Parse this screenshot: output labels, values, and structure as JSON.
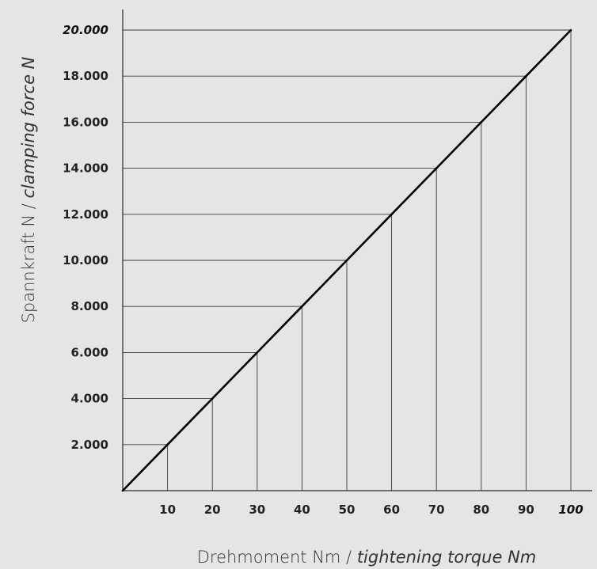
{
  "chart_data": {
    "type": "line",
    "xlabel": "Drehmoment Nm / tightening torque Nm",
    "xlabel_parts": [
      "Drehmoment Nm / ",
      "tightening torque Nm"
    ],
    "ylabel": "Spannkraft N / clamping force N",
    "ylabel_parts": [
      "Spannkraft N / ",
      "clamping force N"
    ],
    "x_ticks": [
      10,
      20,
      30,
      40,
      50,
      60,
      70,
      80,
      90,
      100
    ],
    "x_tick_labels": [
      "10",
      "20",
      "30",
      "40",
      "50",
      "60",
      "70",
      "80",
      "90",
      "100"
    ],
    "y_ticks": [
      2000,
      4000,
      6000,
      8000,
      10000,
      12000,
      14000,
      16000,
      18000,
      20000
    ],
    "y_tick_labels": [
      "2.000",
      "4.000",
      "6.000",
      "8.000",
      "10.000",
      "12.000",
      "14.000",
      "16.000",
      "18.000",
      "20.000"
    ],
    "xlim": [
      0,
      100
    ],
    "ylim": [
      0,
      20000
    ],
    "series": [
      {
        "x": [
          0,
          10,
          20,
          30,
          40,
          50,
          60,
          70,
          80,
          90,
          100
        ],
        "values": [
          0,
          2000,
          4000,
          6000,
          8000,
          10000,
          12000,
          14000,
          16000,
          18000,
          20000
        ]
      }
    ],
    "grid": "drop lines from each point to both axes",
    "highlighted_ticks": {
      "x": "100",
      "y": "20.000"
    },
    "colors": {
      "background": "#e3e5e6",
      "line": "#000000",
      "grid": "#3a3a3a"
    }
  }
}
